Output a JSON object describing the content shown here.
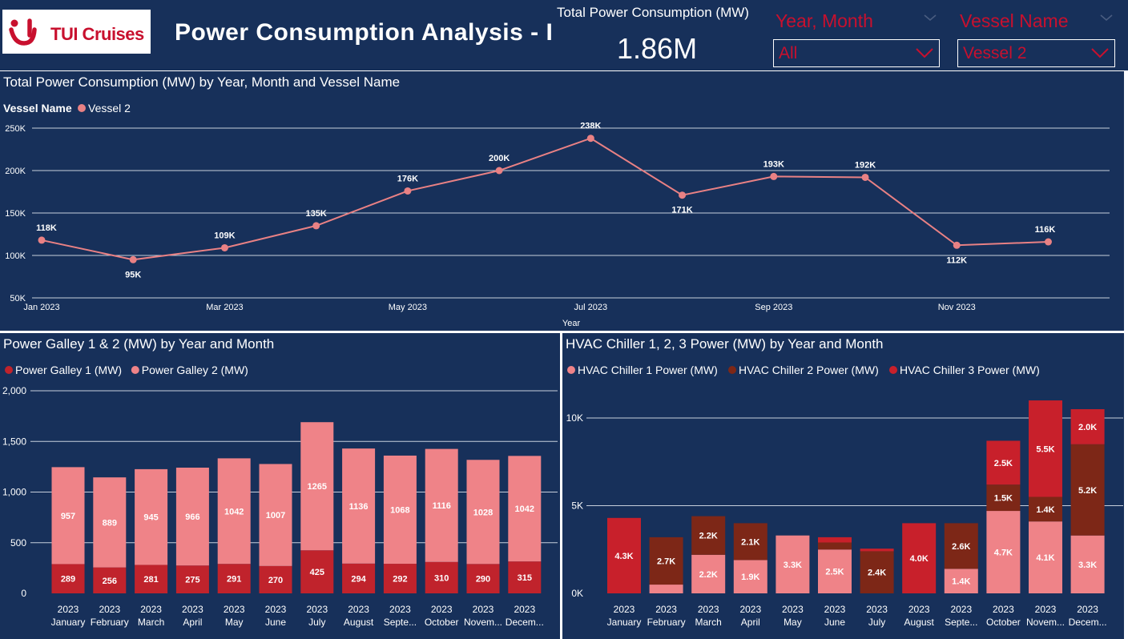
{
  "header": {
    "logo_text": "TUI Cruises",
    "title": "Power Consumption Analysis - I",
    "kpi_label": "Total Power Consumption (MW)",
    "kpi_value": "1.86M"
  },
  "slicers": [
    {
      "title": "Year, Month",
      "value": "All"
    },
    {
      "title": "Vessel Name",
      "value": "Vessel 2"
    }
  ],
  "colors": {
    "background": "#17305a",
    "vessel2": "#e98184",
    "galley1": "#c0232c",
    "galley2": "#ef8388",
    "chiller1": "#ef8388",
    "chiller2": "#7d2717",
    "chiller3": "#c8202b",
    "brand": "#c8102e"
  },
  "chart_data": [
    {
      "type": "line",
      "title": "Total Power Consumption (MW) by Year, Month and Vessel Name",
      "legend_title": "Vessel Name",
      "xlabel": "Year",
      "ylabel": "",
      "x_tick_labels": [
        "Jan 2023",
        "Mar 2023",
        "May 2023",
        "Jul 2023",
        "Sep 2023",
        "Nov 2023"
      ],
      "y_tick_labels": [
        "50K",
        "100K",
        "150K",
        "200K",
        "250K"
      ],
      "ylim": [
        50000,
        250000
      ],
      "grid": true,
      "legend_position": "top-left",
      "x": [
        "2023-01",
        "2023-02",
        "2023-03",
        "2023-04",
        "2023-05",
        "2023-06",
        "2023-07",
        "2023-08",
        "2023-09",
        "2023-10",
        "2023-11",
        "2023-12"
      ],
      "series": [
        {
          "name": "Vessel 2",
          "values": [
            118000,
            95000,
            109000,
            135000,
            176000,
            200000,
            238000,
            171000,
            193000,
            192000,
            112000,
            116000
          ],
          "labels": [
            "118K",
            "95K",
            "109K",
            "135K",
            "176K",
            "200K",
            "238K",
            "171K",
            "193K",
            "192K",
            "112K",
            "116K"
          ]
        }
      ]
    },
    {
      "type": "bar",
      "stacked": true,
      "title": "Power Galley 1 & 2 (MW) by Year and Month",
      "year_label": "2023",
      "categories": [
        "January",
        "February",
        "March",
        "April",
        "May",
        "June",
        "July",
        "August",
        "Septe...",
        "October",
        "Novem...",
        "Decem..."
      ],
      "y_tick_labels": [
        "0",
        "500",
        "1,000",
        "1,500",
        "2,000"
      ],
      "ylim": [
        0,
        2000
      ],
      "grid": true,
      "legend_position": "top-left",
      "series": [
        {
          "name": "Power Galley 1 (MW)",
          "values": [
            289,
            256,
            281,
            275,
            291,
            270,
            425,
            294,
            292,
            310,
            290,
            315
          ]
        },
        {
          "name": "Power Galley 2 (MW)",
          "values": [
            957,
            889,
            945,
            966,
            1042,
            1007,
            1265,
            1136,
            1068,
            1116,
            1028,
            1042
          ]
        }
      ]
    },
    {
      "type": "bar",
      "stacked": true,
      "title": "HVAC Chiller 1, 2, 3 Power (MW) by Year and Month",
      "year_label": "2023",
      "categories": [
        "January",
        "February",
        "March",
        "April",
        "May",
        "June",
        "July",
        "August",
        "Septe...",
        "October",
        "Novem...",
        "Decem..."
      ],
      "y_tick_labels": [
        "0K",
        "5K",
        "10K"
      ],
      "ylim": [
        0,
        10500
      ],
      "grid": true,
      "legend_position": "top-left",
      "series": [
        {
          "name": "HVAC Chiller 1 Power (MW)",
          "values": [
            0,
            500,
            2200,
            1900,
            3300,
            2500,
            0,
            0,
            1400,
            4700,
            4100,
            3300
          ],
          "labels": [
            "",
            "",
            "2.2K",
            "1.9K",
            "3.3K",
            "2.5K",
            "",
            "",
            "1.4K",
            "4.7K",
            "4.1K",
            "3.3K"
          ]
        },
        {
          "name": "HVAC Chiller 2 Power (MW)",
          "values": [
            0,
            2700,
            2200,
            2100,
            0,
            400,
            2400,
            0,
            2600,
            1500,
            1400,
            5200
          ],
          "labels": [
            "",
            "2.7K",
            "2.2K",
            "2.1K",
            "",
            "",
            "2.4K",
            "",
            "2.6K",
            "1.5K",
            "1.4K",
            "5.2K"
          ]
        },
        {
          "name": "HVAC Chiller 3 Power (MW)",
          "values": [
            4300,
            0,
            0,
            0,
            0,
            300,
            150,
            4000,
            0,
            2500,
            5500,
            2000
          ],
          "labels": [
            "4.3K",
            "",
            "",
            "",
            "",
            "",
            "",
            "4.0K",
            "",
            "2.5K",
            "5.5K",
            "2.0K"
          ]
        }
      ]
    }
  ]
}
